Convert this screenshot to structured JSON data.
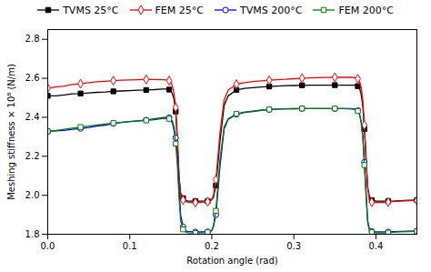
{
  "chart_data": {
    "type": "line",
    "xlabel": "Rotation angle (rad)",
    "ylabel": "Meshing stiffness × 10⁸ (N/m)",
    "xlim": [
      0,
      0.45
    ],
    "ylim": [
      1.8,
      2.85
    ],
    "xticks": [
      {
        "value": 0,
        "label": "0.0"
      },
      0.1,
      0.2,
      0.3,
      0.4
    ],
    "yticks": [
      1.8,
      {
        "value": 2.0,
        "label": "2.0"
      },
      2.2,
      2.4,
      2.6,
      2.8
    ],
    "grid": false,
    "legend": "top",
    "x": [
      0.0,
      0.01,
      0.02,
      0.03,
      0.04,
      0.05,
      0.06,
      0.07,
      0.08,
      0.09,
      0.1,
      0.11,
      0.12,
      0.13,
      0.14,
      0.145,
      0.148,
      0.15,
      0.152,
      0.154,
      0.156,
      0.158,
      0.16,
      0.162,
      0.165,
      0.168,
      0.17,
      0.175,
      0.18,
      0.185,
      0.19,
      0.192,
      0.195,
      0.198,
      0.2,
      0.202,
      0.205,
      0.21,
      0.215,
      0.22,
      0.23,
      0.24,
      0.25,
      0.26,
      0.27,
      0.28,
      0.29,
      0.3,
      0.31,
      0.32,
      0.33,
      0.34,
      0.35,
      0.36,
      0.37,
      0.375,
      0.378,
      0.38,
      0.382,
      0.384,
      0.386,
      0.388,
      0.39,
      0.392,
      0.395,
      0.4,
      0.405,
      0.41,
      0.415,
      0.42,
      0.43,
      0.44,
      0.45
    ],
    "series": [
      {
        "name": "TVMS 25°C",
        "color": "black",
        "marker": "filled-square",
        "values": [
          2.51,
          2.51,
          2.515,
          2.52,
          2.522,
          2.525,
          2.528,
          2.53,
          2.533,
          2.535,
          2.537,
          2.539,
          2.54,
          2.542,
          2.545,
          2.545,
          2.542,
          2.535,
          2.52,
          2.49,
          2.43,
          2.28,
          2.1,
          2.01,
          1.985,
          1.975,
          1.97,
          1.97,
          1.97,
          1.97,
          1.97,
          1.97,
          1.97,
          1.973,
          1.978,
          1.99,
          2.05,
          2.28,
          2.46,
          2.51,
          2.54,
          2.548,
          2.552,
          2.555,
          2.558,
          2.56,
          2.562,
          2.563,
          2.564,
          2.565,
          2.565,
          2.565,
          2.565,
          2.565,
          2.565,
          2.565,
          2.56,
          2.55,
          2.52,
          2.46,
          2.34,
          2.18,
          2.04,
          1.995,
          1.975,
          1.97,
          1.97,
          1.97,
          1.97,
          1.97,
          1.972,
          1.974,
          1.975
        ]
      },
      {
        "name": "FEM 25°C",
        "color": "red",
        "marker": "open-diamond",
        "values": [
          2.55,
          2.555,
          2.56,
          2.568,
          2.572,
          2.578,
          2.582,
          2.585,
          2.588,
          2.59,
          2.592,
          2.593,
          2.594,
          2.594,
          2.593,
          2.592,
          2.588,
          2.58,
          2.56,
          2.52,
          2.45,
          2.3,
          2.1,
          1.995,
          1.975,
          1.968,
          1.965,
          1.963,
          1.963,
          1.963,
          1.965,
          1.965,
          1.967,
          1.972,
          1.98,
          2.0,
          2.08,
          2.32,
          2.49,
          2.54,
          2.57,
          2.578,
          2.583,
          2.587,
          2.59,
          2.593,
          2.595,
          2.598,
          2.6,
          2.602,
          2.603,
          2.604,
          2.605,
          2.605,
          2.605,
          2.603,
          2.598,
          2.585,
          2.555,
          2.49,
          2.36,
          2.2,
          2.04,
          1.98,
          1.965,
          1.963,
          1.963,
          1.963,
          1.965,
          1.967,
          1.97,
          1.972,
          1.973
        ]
      },
      {
        "name": "TVMS 200°C",
        "color": "blue",
        "marker": "open-circle",
        "values": [
          2.328,
          2.33,
          2.333,
          2.338,
          2.342,
          2.348,
          2.355,
          2.36,
          2.368,
          2.373,
          2.378,
          2.382,
          2.386,
          2.392,
          2.398,
          2.4,
          2.398,
          2.392,
          2.378,
          2.348,
          2.295,
          2.195,
          2.04,
          1.9,
          1.838,
          1.818,
          1.815,
          1.813,
          1.812,
          1.812,
          1.812,
          1.812,
          1.813,
          1.815,
          1.82,
          1.84,
          1.9,
          2.15,
          2.34,
          2.39,
          2.415,
          2.425,
          2.43,
          2.435,
          2.44,
          2.442,
          2.443,
          2.444,
          2.445,
          2.445,
          2.445,
          2.445,
          2.445,
          2.445,
          2.444,
          2.442,
          2.435,
          2.418,
          2.38,
          2.31,
          2.17,
          2.02,
          1.87,
          1.83,
          1.815,
          1.812,
          1.812,
          1.812,
          1.812,
          1.813,
          1.815,
          1.816,
          1.817
        ]
      },
      {
        "name": "FEM 200°C",
        "color": "green",
        "marker": "open-square",
        "values": [
          2.328,
          2.332,
          2.338,
          2.344,
          2.35,
          2.355,
          2.36,
          2.365,
          2.37,
          2.375,
          2.378,
          2.381,
          2.384,
          2.388,
          2.393,
          2.394,
          2.392,
          2.385,
          2.368,
          2.33,
          2.265,
          2.16,
          1.995,
          1.87,
          1.825,
          1.812,
          1.808,
          1.806,
          1.806,
          1.807,
          1.808,
          1.809,
          1.81,
          1.813,
          1.82,
          1.845,
          1.92,
          2.185,
          2.35,
          2.392,
          2.418,
          2.427,
          2.432,
          2.437,
          2.44,
          2.442,
          2.443,
          2.444,
          2.445,
          2.445,
          2.445,
          2.445,
          2.445,
          2.445,
          2.443,
          2.44,
          2.432,
          2.415,
          2.375,
          2.3,
          2.155,
          2.0,
          1.858,
          1.822,
          1.81,
          1.807,
          1.807,
          1.807,
          1.808,
          1.81,
          1.812,
          1.814,
          1.815
        ]
      }
    ]
  }
}
